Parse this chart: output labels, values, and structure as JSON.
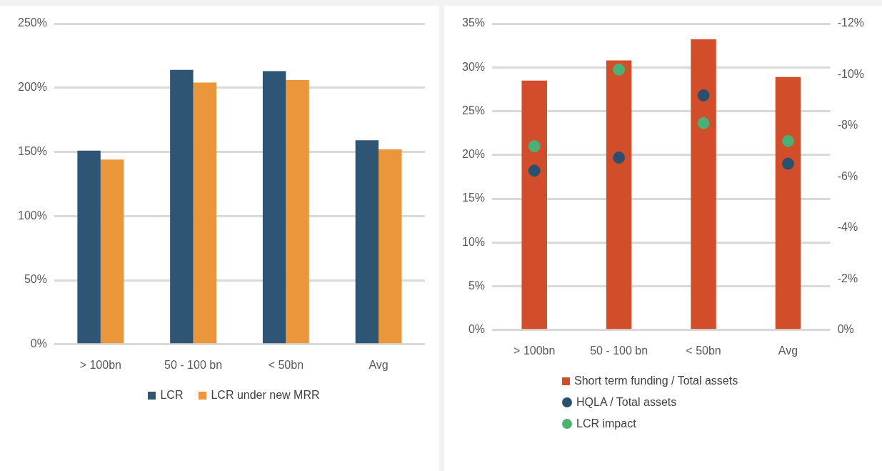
{
  "chart_data": [
    {
      "type": "bar",
      "categories": [
        "> 100bn",
        "50 - 100 bn",
        "< 50bn",
        "Avg"
      ],
      "series": [
        {
          "name": "LCR",
          "color": "#2e5573",
          "values": [
            151,
            214,
            213,
            159
          ]
        },
        {
          "name": "LCR under new MRR",
          "color": "#ea963a",
          "values": [
            144,
            204,
            206,
            152
          ]
        }
      ],
      "ylim": [
        0,
        250
      ],
      "yticks": [
        {
          "value": 0,
          "label": "0%"
        },
        {
          "value": 50,
          "label": "50%"
        },
        {
          "value": 100,
          "label": "100%"
        },
        {
          "value": 150,
          "label": "150%"
        },
        {
          "value": 200,
          "label": "200%"
        },
        {
          "value": 250,
          "label": "250%"
        }
      ],
      "grid": "y",
      "legend": "bottom"
    },
    {
      "type": "bar",
      "categories": [
        "> 100bn",
        "50 - 100 bn",
        "< 50bn",
        "Avg"
      ],
      "series": [
        {
          "name": "Short term funding / Total assets",
          "color": "#d24e2b",
          "values": [
            28.5,
            30.8,
            33.2,
            28.9
          ]
        },
        {
          "name": "HQLA / Total assets",
          "type": "scatter",
          "color": "#2d4f6e",
          "x": [
            "> 100bn",
            "50 - 100 bn",
            "< 50bn",
            "Avg"
          ],
          "values": [
            18.2,
            19.7,
            26.8,
            19.0
          ]
        },
        {
          "name": "LCR impact",
          "type": "scatter",
          "axis": "y2",
          "color": "#4caf73",
          "x": [
            "> 100bn",
            "50 - 100 bn",
            "< 50bn",
            "Avg"
          ],
          "values": [
            -7.2,
            -10.2,
            -8.1,
            -7.4
          ]
        }
      ],
      "ylim": [
        0,
        35
      ],
      "yticks": [
        {
          "value": 0,
          "label": "0%"
        },
        {
          "value": 5,
          "label": "5%"
        },
        {
          "value": 10,
          "label": "10%"
        },
        {
          "value": 15,
          "label": "15%"
        },
        {
          "value": 20,
          "label": "20%"
        },
        {
          "value": 25,
          "label": "25%"
        },
        {
          "value": 30,
          "label": "30%"
        },
        {
          "value": 35,
          "label": "35%"
        }
      ],
      "y2lim": [
        0,
        -12
      ],
      "y2ticks": [
        {
          "value": 0,
          "label": "0%"
        },
        {
          "value": -2,
          "label": "-2%"
        },
        {
          "value": -4,
          "label": "-4%"
        },
        {
          "value": -6,
          "label": "-6%"
        },
        {
          "value": -8,
          "label": "-8%"
        },
        {
          "value": -10,
          "label": "-10%"
        },
        {
          "value": -12,
          "label": "-12%"
        }
      ],
      "grid": "y",
      "legend": "bottom",
      "marker": "circle"
    }
  ]
}
